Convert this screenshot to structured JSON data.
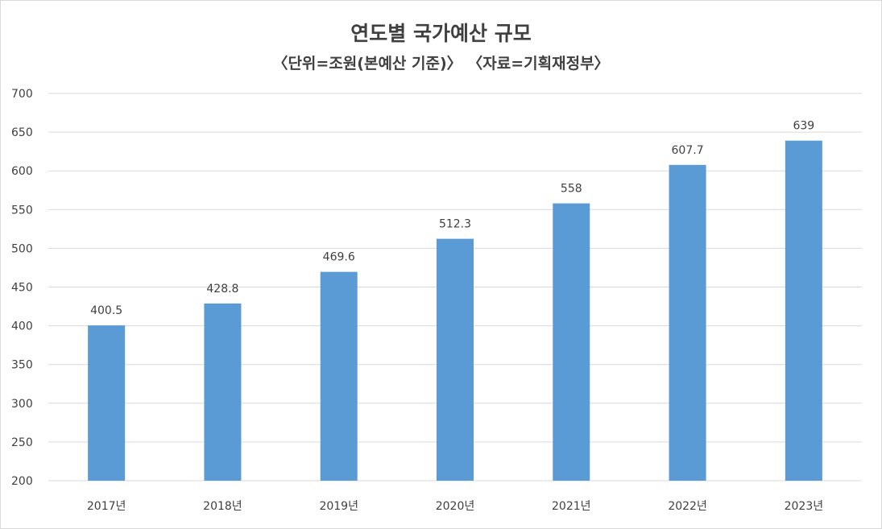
{
  "chart_data": {
    "type": "bar",
    "title": "연도별 국가예산 규모",
    "subtitle": "〈단위=조원(본예산 기준)〉 〈자료=기획재정부〉",
    "categories": [
      "2017년",
      "2018년",
      "2019년",
      "2020년",
      "2021년",
      "2022년",
      "2023년"
    ],
    "values": [
      400.5,
      428.8,
      469.6,
      512.3,
      558,
      607.7,
      639
    ],
    "data_labels": [
      "400.5",
      "428.8",
      "469.6",
      "512.3",
      "558",
      "607.7",
      "639"
    ],
    "ylim": [
      200,
      700
    ],
    "yticks": [
      200,
      250,
      300,
      350,
      400,
      450,
      500,
      550,
      600,
      650,
      700
    ],
    "grid": true,
    "legend": "none",
    "xlabel": "",
    "ylabel": "",
    "bar_color": "#5b9bd5",
    "grid_color": "#d9d9d9"
  }
}
